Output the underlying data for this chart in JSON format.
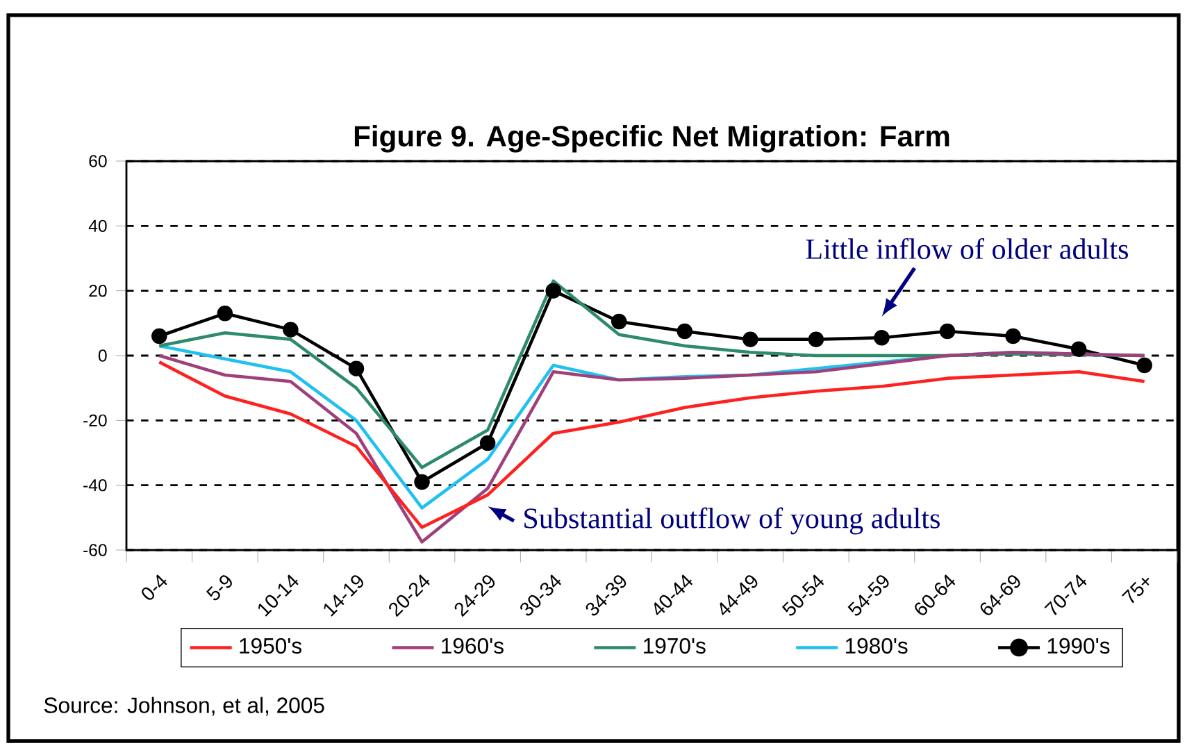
{
  "chart_data": {
    "type": "line",
    "title": "Figure 9. Age-Specific Net Migration: Farm",
    "categories": [
      "0-4",
      "5-9",
      "10-14",
      "14-19",
      "20-24",
      "24-29",
      "30-34",
      "34-39",
      "40-44",
      "44-49",
      "50-54",
      "54-59",
      "60-64",
      "64-69",
      "70-74",
      "75+"
    ],
    "series": [
      {
        "name": "1950's",
        "color": "#ff2020",
        "marker": "none",
        "values": [
          -2,
          -12.5,
          -18,
          -28,
          -53,
          -43,
          -24,
          -20.5,
          -16,
          -13,
          -11,
          -9.5,
          -7,
          -6,
          -5,
          -8
        ]
      },
      {
        "name": "1960's",
        "color": "#a0407a",
        "marker": "none",
        "values": [
          0,
          -6,
          -8,
          -24,
          -57.5,
          -41,
          -5,
          -7.5,
          -7,
          -6,
          -5,
          -2.5,
          0,
          1,
          null,
          0
        ]
      },
      {
        "name": "1970's",
        "color": "#2e8b6a",
        "marker": "none",
        "values": [
          3,
          7,
          5,
          -10,
          -34.5,
          -23,
          23,
          6.5,
          3,
          1,
          0,
          0,
          0,
          0.5,
          null,
          0
        ]
      },
      {
        "name": "1980's",
        "color": "#20c0f0",
        "marker": "none",
        "values": [
          3,
          -1,
          -5,
          -20,
          -47,
          -32,
          -3,
          -7.5,
          -6.5,
          -6,
          -4,
          -2,
          0,
          1,
          null,
          0
        ]
      },
      {
        "name": "1990's",
        "color": "#000000",
        "marker": "circle",
        "values": [
          6,
          13,
          8,
          -4,
          -39,
          -27,
          20,
          10.5,
          7.5,
          5,
          5,
          5.5,
          7.5,
          6,
          2,
          -3
        ]
      }
    ],
    "ylim": [
      -60,
      60
    ],
    "yticks": [
      -60,
      -40,
      -20,
      0,
      20,
      40,
      60
    ],
    "grid": "y",
    "legend": "bottom",
    "annotations": [
      "Little inflow of older adults",
      "Substantial outflow of young adults",
      "Source: Johnson, et al, 2005"
    ]
  }
}
